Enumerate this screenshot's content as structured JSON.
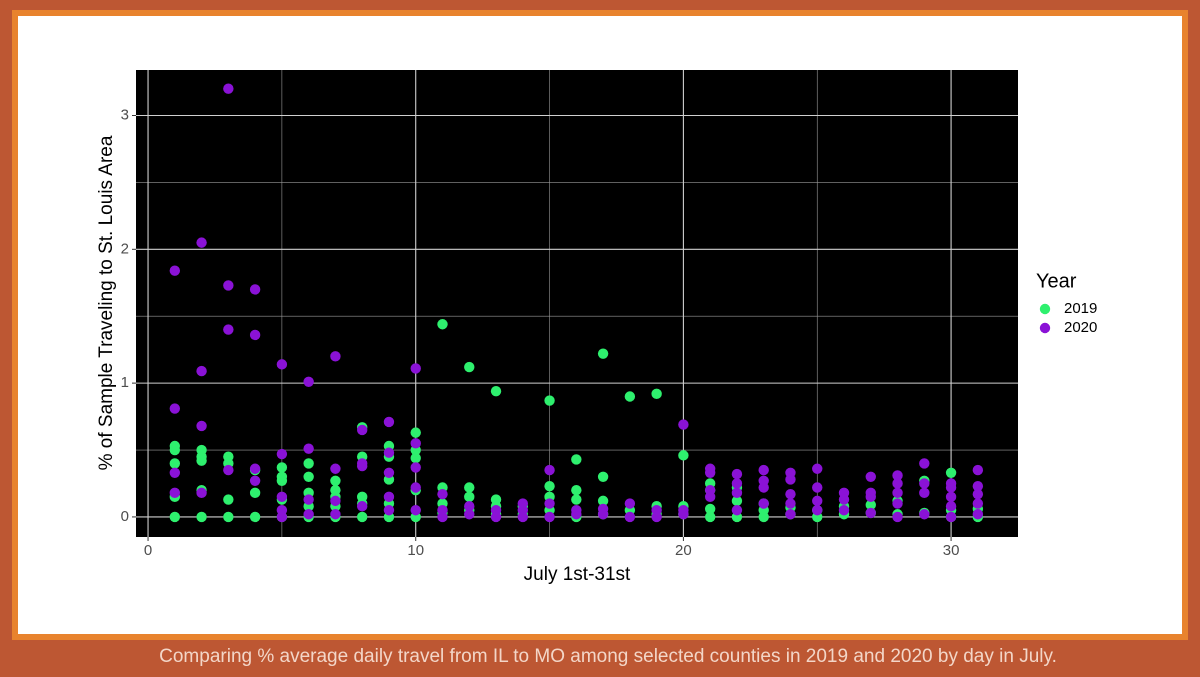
{
  "chart_data": {
    "type": "scatter",
    "xlabel": "July 1st-31st",
    "ylabel": "% of Sample Traveling to St. Louis Area",
    "legend_title": "Year",
    "legend": "right",
    "caption": "Comparing % average daily travel from IL to MO among selected counties in 2019 and 2020 by day in July.",
    "xlim": [
      -0.45,
      32.5
    ],
    "ylim": [
      -0.15,
      3.34
    ],
    "xticks": [
      0,
      10,
      20,
      30
    ],
    "yticks": [
      0,
      1,
      2,
      3
    ],
    "xminorticks": [
      5,
      15,
      25
    ],
    "yminorticks": [
      0.5,
      1.5,
      2.5
    ],
    "grid": true,
    "series": [
      {
        "name": "2019",
        "color": "#2ef06e",
        "x": [
          1,
          1,
          1,
          1,
          1,
          2,
          2,
          2,
          2,
          2,
          3,
          3,
          3,
          3,
          4,
          4,
          4,
          5,
          5,
          5,
          5,
          5,
          6,
          6,
          6,
          6,
          6,
          7,
          7,
          7,
          7,
          7,
          8,
          8,
          8,
          8,
          8,
          9,
          9,
          9,
          9,
          9,
          10,
          10,
          10,
          10,
          10,
          11,
          11,
          11,
          11,
          12,
          12,
          12,
          12,
          13,
          13,
          13,
          13,
          14,
          14,
          15,
          15,
          15,
          15,
          16,
          16,
          16,
          16,
          17,
          17,
          17,
          17,
          18,
          18,
          19,
          19,
          19,
          20,
          20,
          20,
          21,
          21,
          21,
          21,
          22,
          22,
          22,
          23,
          23,
          23,
          24,
          24,
          25,
          25,
          26,
          26,
          27,
          27,
          28,
          28,
          29,
          29,
          30,
          30,
          30,
          31,
          31
        ],
        "values": [
          0.53,
          0.5,
          0.4,
          0.15,
          0,
          0.5,
          0.45,
          0.42,
          0.2,
          0,
          0.45,
          0.4,
          0.13,
          0,
          0.35,
          0.18,
          0,
          0.37,
          0.3,
          0.27,
          0.13,
          0,
          0.4,
          0.3,
          0.18,
          0.08,
          0,
          0.27,
          0.2,
          0.15,
          0.08,
          0,
          0.67,
          0.45,
          0.15,
          0.1,
          0,
          0.53,
          0.45,
          0.28,
          0.1,
          0,
          0.63,
          0.5,
          0.44,
          0.2,
          0,
          1.44,
          0.22,
          0.1,
          0.03,
          1.12,
          0.22,
          0.15,
          0.05,
          0.94,
          0.13,
          0.08,
          0.02,
          0.08,
          0.02,
          0.87,
          0.23,
          0.15,
          0.05,
          0.43,
          0.2,
          0.13,
          0,
          1.22,
          0.3,
          0.12,
          0.02,
          0.9,
          0.05,
          0.92,
          0.08,
          0.02,
          0.46,
          0.08,
          0.02,
          0.25,
          0.2,
          0.06,
          0,
          0.22,
          0.12,
          0,
          0.1,
          0.05,
          0,
          0.07,
          0.02,
          0.05,
          0,
          0.08,
          0.02,
          0.09,
          0.03,
          0.12,
          0.02,
          0.27,
          0.03,
          0.33,
          0.05,
          0,
          0.06,
          0
        ]
      },
      {
        "name": "2020",
        "color": "#8a12d6",
        "x": [
          1,
          1,
          1,
          1,
          2,
          2,
          2,
          2,
          3,
          3,
          3,
          3,
          4,
          4,
          4,
          4,
          5,
          5,
          5,
          5,
          5,
          6,
          6,
          6,
          6,
          7,
          7,
          7,
          7,
          8,
          8,
          8,
          8,
          9,
          9,
          9,
          9,
          9,
          10,
          10,
          10,
          10,
          10,
          11,
          11,
          11,
          12,
          12,
          13,
          13,
          14,
          14,
          14,
          15,
          15,
          15,
          16,
          16,
          17,
          17,
          18,
          18,
          19,
          19,
          20,
          20,
          20,
          21,
          21,
          21,
          21,
          22,
          22,
          22,
          22,
          23,
          23,
          23,
          23,
          24,
          24,
          24,
          24,
          24,
          25,
          25,
          25,
          25,
          26,
          26,
          26,
          27,
          27,
          27,
          27,
          28,
          28,
          28,
          28,
          28,
          29,
          29,
          29,
          29,
          30,
          30,
          30,
          30,
          30,
          31,
          31,
          31,
          31,
          31
        ],
        "values": [
          1.84,
          0.81,
          0.33,
          0.18,
          2.05,
          1.09,
          0.68,
          0.18,
          3.2,
          1.73,
          1.4,
          0.35,
          1.7,
          1.36,
          0.36,
          0.27,
          1.14,
          0.47,
          0.15,
          0.05,
          0,
          1.01,
          0.51,
          0.13,
          0.02,
          1.2,
          0.36,
          0.12,
          0.02,
          0.65,
          0.4,
          0.38,
          0.08,
          0.71,
          0.48,
          0.33,
          0.15,
          0.05,
          1.11,
          0.55,
          0.37,
          0.22,
          0.05,
          0.17,
          0.05,
          0,
          0.08,
          0.02,
          0.05,
          0,
          0.1,
          0.05,
          0,
          0.35,
          0.1,
          0,
          0.05,
          0.02,
          0.06,
          0.02,
          0.1,
          0,
          0.05,
          0,
          0.69,
          0.05,
          0.02,
          0.36,
          0.33,
          0.2,
          0.15,
          0.32,
          0.25,
          0.18,
          0.05,
          0.35,
          0.27,
          0.22,
          0.1,
          0.33,
          0.28,
          0.17,
          0.1,
          0.02,
          0.36,
          0.22,
          0.12,
          0.05,
          0.18,
          0.13,
          0.05,
          0.3,
          0.18,
          0.15,
          0.03,
          0.31,
          0.25,
          0.18,
          0.1,
          0,
          0.4,
          0.25,
          0.18,
          0.02,
          0.25,
          0.22,
          0.15,
          0.08,
          0,
          0.35,
          0.23,
          0.17,
          0.1,
          0.02
        ]
      }
    ]
  }
}
